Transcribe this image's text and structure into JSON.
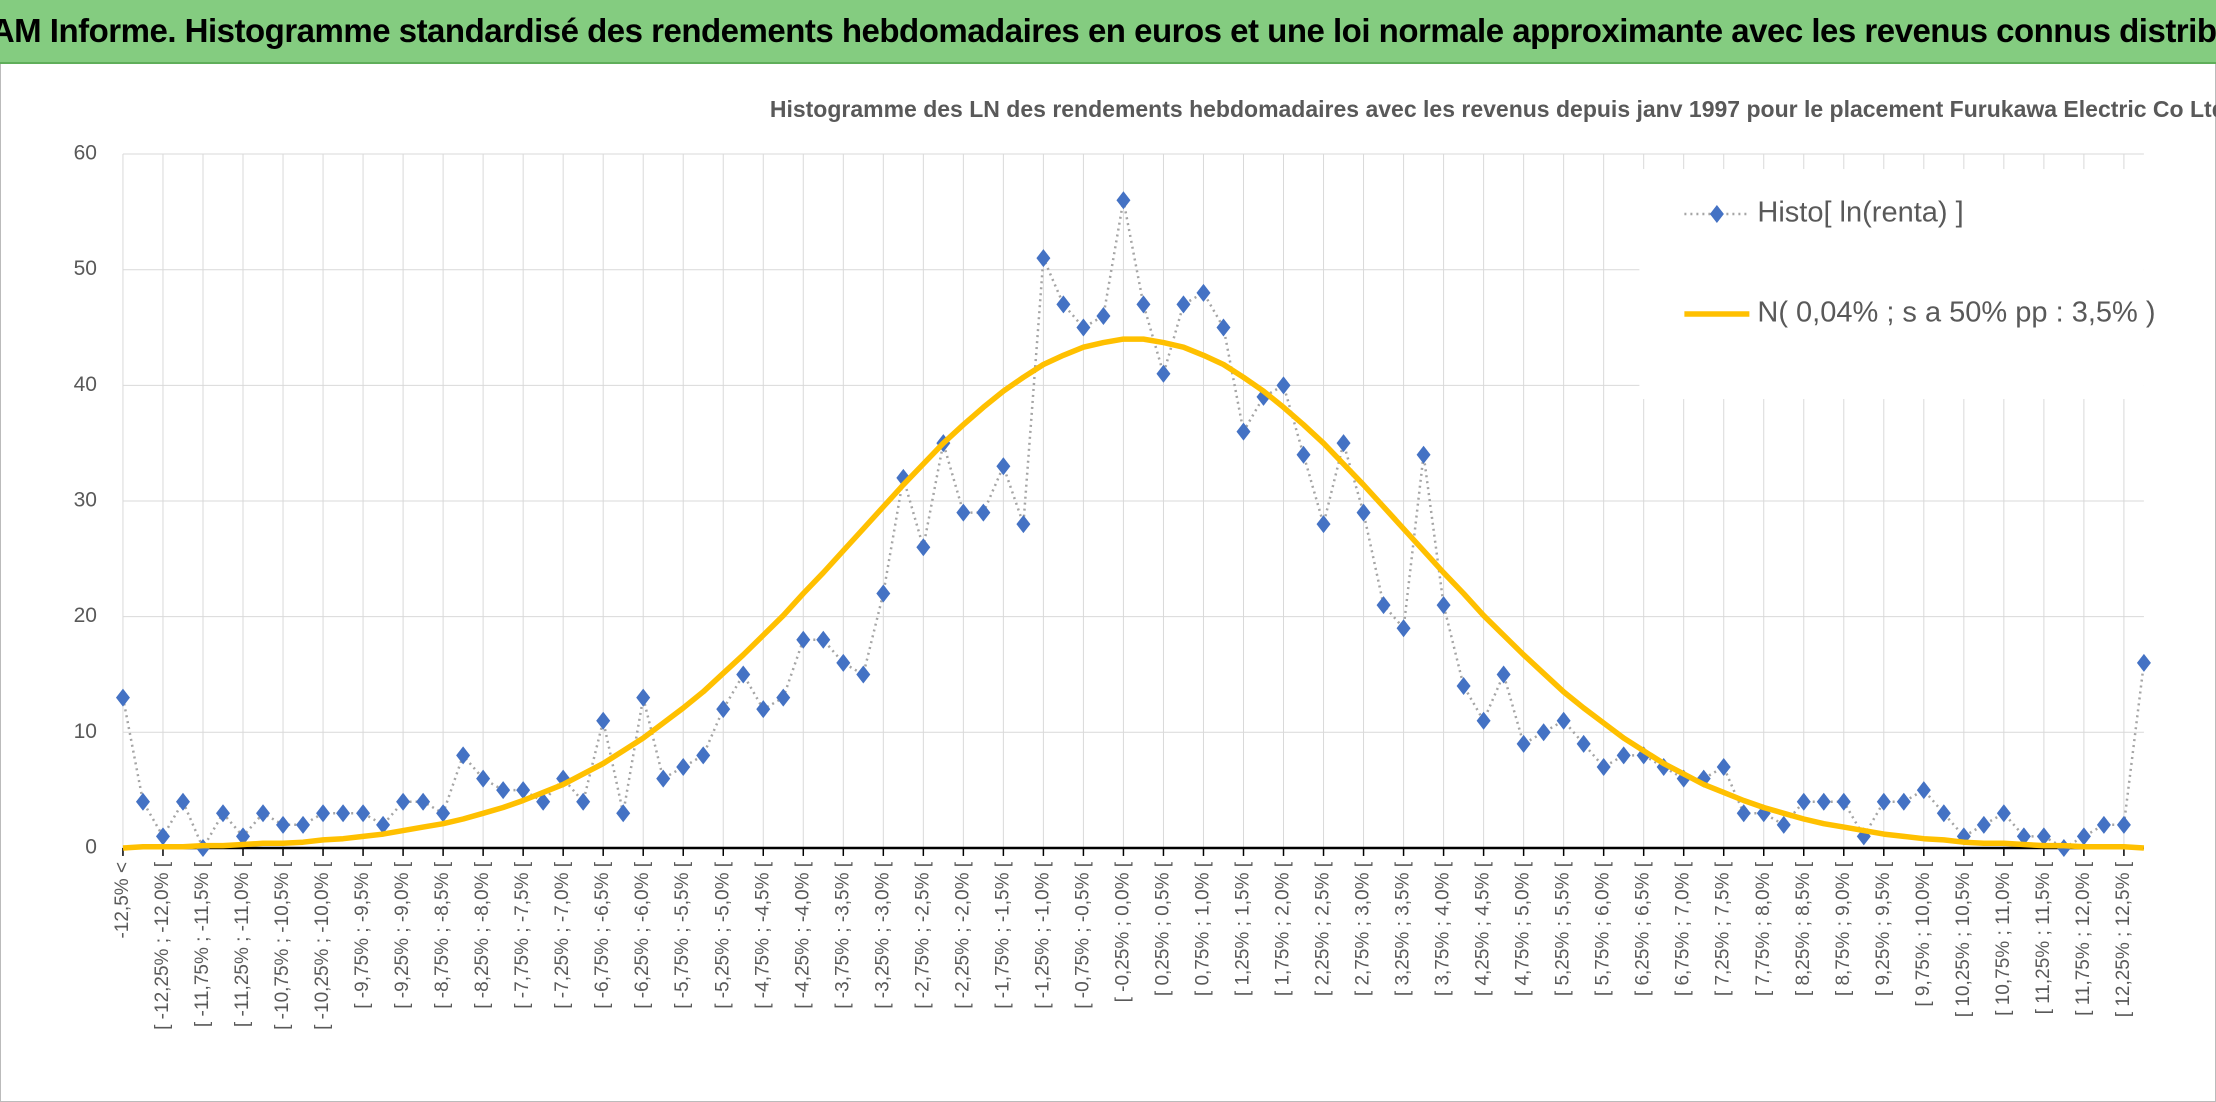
{
  "header": {
    "title": "ADAM Informe. Histogramme standardisé des rendements hebdomadaires en euros et une loi normale approximante avec les revenus connus distribués"
  },
  "chart_data": {
    "type": "line",
    "title": "Histogramme des LN des rendements hebdomadaires avec les revenus depuis janv 1997 pour le placement Furukawa Electric Co Ltd.",
    "categories": [
      "-12,5% <",
      null,
      "[ -12,25% ; -12,0% [",
      null,
      "[ -11,75% ; -11,5% [",
      null,
      "[ -11,25% ; -11,0% [",
      null,
      "[ -10,75% ; -10,5% [",
      null,
      "[ -10,25% ; -10,0% [",
      null,
      "[ -9,75% ; -9,5% [",
      null,
      "[ -9,25% ; -9,0% [",
      null,
      "[ -8,75% ; -8,5% [",
      null,
      "[ -8,25% ; -8,0% [",
      null,
      "[ -7,75% ; -7,5% [",
      null,
      "[ -7,25% ; -7,0% [",
      null,
      "[ -6,75% ; -6,5% [",
      null,
      "[ -6,25% ; -6,0% [",
      null,
      "[ -5,75% ; -5,5% [",
      null,
      "[ -5,25% ; -5,0% [",
      null,
      "[ -4,75% ; -4,5% [",
      null,
      "[ -4,25% ; -4,0% [",
      null,
      "[ -3,75% ; -3,5% [",
      null,
      "[ -3,25% ; -3,0% [",
      null,
      "[ -2,75% ; -2,5% [",
      null,
      "[ -2,25% ; -2,0% [",
      null,
      "[ -1,75% ; -1,5% [",
      null,
      "[ -1,25% ; -1,0% [",
      null,
      "[ -0,75% ; -0,5% [",
      null,
      "[ -0,25% ; 0,0% [",
      null,
      "[ 0,25% ; 0,5% [",
      null,
      "[ 0,75% ; 1,0% [",
      null,
      "[ 1,25% ; 1,5% [",
      null,
      "[ 1,75% ; 2,0% [",
      null,
      "[ 2,25% ; 2,5% [",
      null,
      "[ 2,75% ; 3,0% [",
      null,
      "[ 3,25% ; 3,5% [",
      null,
      "[ 3,75% ; 4,0% [",
      null,
      "[ 4,25% ; 4,5% [",
      null,
      "[ 4,75% ; 5,0% [",
      null,
      "[ 5,25% ; 5,5% [",
      null,
      "[ 5,75% ; 6,0% [",
      null,
      "[ 6,25% ; 6,5% [",
      null,
      "[ 6,75% ; 7,0% [",
      null,
      "[ 7,25% ; 7,5% [",
      null,
      "[ 7,75% ; 8,0% [",
      null,
      "[ 8,25% ; 8,5% [",
      null,
      "[ 8,75% ; 9,0% [",
      null,
      "[ 9,25% ; 9,5% [",
      null,
      "[ 9,75% ; 10,0% [",
      null,
      "[ 10,25% ; 10,5% [",
      null,
      "[ 10,75% ; 11,0% [",
      null,
      "[ 11,25% ; 11,5% [",
      null,
      "[ 11,75% ; 12,0% [",
      null,
      "[ 12,25% ; 12,5% [",
      null
    ],
    "series": [
      {
        "name": "Histo[ ln(renta) ]",
        "color": "#4472c4",
        "line_color": "#a5a5a5",
        "marker": "diamond",
        "values": [
          13,
          4,
          1,
          4,
          0,
          3,
          1,
          3,
          2,
          2,
          3,
          3,
          3,
          2,
          4,
          4,
          3,
          8,
          6,
          5,
          5,
          4,
          6,
          4,
          11,
          3,
          13,
          6,
          7,
          8,
          12,
          15,
          12,
          13,
          18,
          18,
          16,
          15,
          22,
          32,
          26,
          35,
          29,
          29,
          33,
          28,
          51,
          47,
          45,
          46,
          56,
          47,
          41,
          47,
          48,
          45,
          36,
          39,
          40,
          34,
          28,
          35,
          29,
          21,
          19,
          34,
          21,
          14,
          11,
          15,
          9,
          10,
          11,
          9,
          7,
          8,
          8,
          7,
          6,
          6,
          7,
          3,
          3,
          2,
          4,
          4,
          4,
          1,
          4,
          4,
          5,
          3,
          1,
          2,
          3,
          1,
          1,
          0,
          1,
          2,
          2,
          16
        ]
      },
      {
        "name": "N( 0,04% ; s a 50% pp : 3,5% )",
        "color": "#ffc000",
        "values": [
          0,
          0.1,
          0.1,
          0.1,
          0.2,
          0.2,
          0.3,
          0.4,
          0.4,
          0.5,
          0.7,
          0.8,
          1.0,
          1.2,
          1.5,
          1.8,
          2.1,
          2.5,
          3.0,
          3.5,
          4.1,
          4.8,
          5.5,
          6.4,
          7.3,
          8.4,
          9.5,
          10.8,
          12.1,
          13.5,
          15.1,
          16.7,
          18.4,
          20.1,
          22.0,
          23.8,
          25.7,
          27.6,
          29.5,
          31.4,
          33.2,
          35.0,
          36.6,
          38.1,
          39.5,
          40.7,
          41.8,
          42.6,
          43.3,
          43.7,
          44.0,
          44.0,
          43.7,
          43.3,
          42.6,
          41.8,
          40.7,
          39.5,
          38.1,
          36.6,
          35.0,
          33.2,
          31.4,
          29.5,
          27.6,
          25.7,
          23.8,
          22.0,
          20.1,
          18.4,
          16.7,
          15.1,
          13.5,
          12.1,
          10.8,
          9.5,
          8.4,
          7.3,
          6.4,
          5.5,
          4.8,
          4.1,
          3.5,
          3.0,
          2.5,
          2.1,
          1.8,
          1.5,
          1.2,
          1.0,
          0.8,
          0.7,
          0.5,
          0.4,
          0.4,
          0.3,
          0.2,
          0.2,
          0.1,
          0.1,
          0.1,
          0
        ]
      }
    ],
    "ylim": [
      0,
      60
    ],
    "yticks": [
      0,
      10,
      20,
      30,
      40,
      50,
      60
    ],
    "grid": true,
    "legend": "upper right"
  }
}
